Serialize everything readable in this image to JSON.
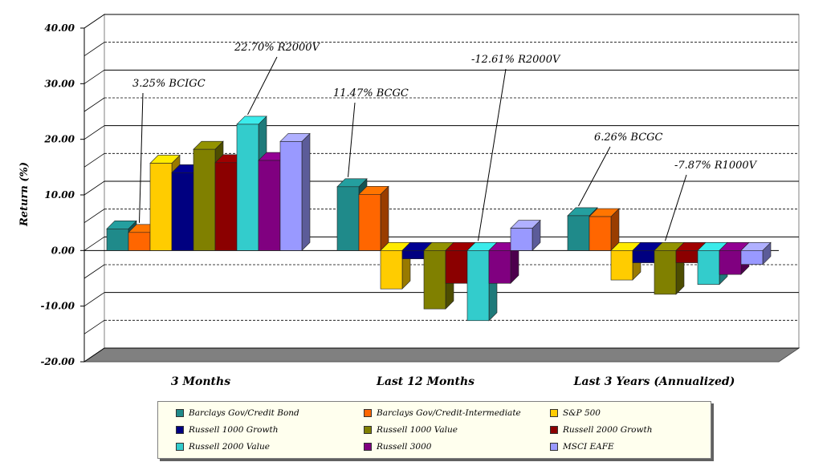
{
  "chart_data": {
    "type": "bar",
    "ylabel": "Return (%)",
    "ylim": [
      -20,
      40
    ],
    "yticks": [
      "40.00",
      "30.00",
      "20.00",
      "10.00",
      "0.00",
      "-10.00",
      "-20.00"
    ],
    "categories": [
      "3 Months",
      "Last 12 Months",
      "Last 3 Years (Annualized)"
    ],
    "series": [
      {
        "name": "Barclays Gov/Credit Bond",
        "color": "#1f8a8a",
        "values": [
          3.9,
          11.47,
          6.26
        ]
      },
      {
        "name": "Barclays Gov/Credit-Intermediate",
        "color": "#ff6600",
        "values": [
          3.25,
          10.1,
          6.1
        ]
      },
      {
        "name": "S&P 500",
        "color": "#ffcc00",
        "values": [
          15.7,
          -6.9,
          -5.3
        ]
      },
      {
        "name": "Russell 1000 Growth",
        "color": "#000080",
        "values": [
          14.0,
          -1.5,
          -2.2
        ]
      },
      {
        "name": "Russell 1000 Value",
        "color": "#808000",
        "values": [
          18.2,
          -10.5,
          -7.87
        ]
      },
      {
        "name": "Russell 2000 Growth",
        "color": "#8b0000",
        "values": [
          15.8,
          -5.9,
          -2.2
        ]
      },
      {
        "name": "Russell 2000 Value",
        "color": "#33cccc",
        "values": [
          22.7,
          -12.61,
          -6.1
        ]
      },
      {
        "name": "Russell 3000",
        "color": "#800080",
        "values": [
          16.2,
          -5.9,
          -4.3
        ]
      },
      {
        "name": "MSCI EAFE",
        "color": "#9999ff",
        "values": [
          19.6,
          4.0,
          -2.5
        ]
      }
    ],
    "annotations": [
      {
        "text": "3.25% BCIGC",
        "category": 0,
        "series": 1
      },
      {
        "text": "22.70% R2000V",
        "category": 0,
        "series": 6
      },
      {
        "text": "11.47% BCGC",
        "category": 1,
        "series": 0
      },
      {
        "text": "-12.61% R2000V",
        "category": 1,
        "series": 6
      },
      {
        "text": "6.26% BCGC",
        "category": 2,
        "series": 0
      },
      {
        "text": "-7.87% R1000V",
        "category": 2,
        "series": 4
      }
    ],
    "grid": true,
    "legend_position": "bottom"
  }
}
